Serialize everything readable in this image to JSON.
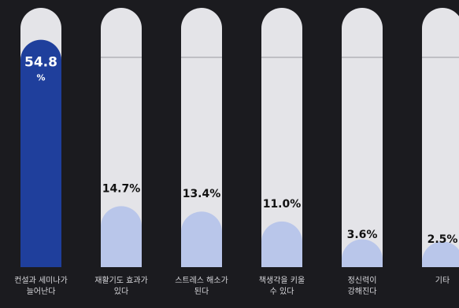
{
  "chart_data": {
    "type": "bar",
    "categories": [
      "컨설과 세미나가 늘어난다",
      "재활기도 효과가 있다",
      "스트레스 해소가 된다",
      "책생각을 키울 수 있다",
      "정신력이 강해진다",
      "기타"
    ],
    "values": [
      54.8,
      14.7,
      13.4,
      11.0,
      3.6,
      2.5
    ],
    "value_labels": [
      "54.8%",
      "14.7%",
      "13.4%",
      "11.0%",
      "3.6%",
      "2.5%"
    ],
    "ylim": [
      0,
      62.5
    ],
    "colors": {
      "highlight": "#1f3f9c",
      "fill": "#b9c6ea",
      "tube": "#e4e4e8",
      "background": "#1b1b1f"
    }
  }
}
